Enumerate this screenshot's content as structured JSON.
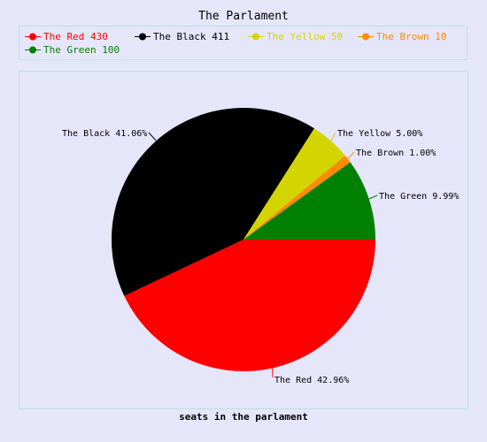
{
  "chart_data": {
    "type": "pie",
    "title": "The Parlament",
    "xlabel": "seats in the parlament",
    "legend_position": "top",
    "slices": [
      {
        "name": "The Red",
        "value": 430,
        "legend": "The Red 430",
        "label": "The Red 42.96%",
        "color": "#ff0000"
      },
      {
        "name": "The Black",
        "value": 411,
        "legend": "The Black 411",
        "label": "The Black 41.06%",
        "color": "#000000"
      },
      {
        "name": "The Yellow",
        "value": 50,
        "legend": "The Yellow 50",
        "label": "The Yellow 5.00%",
        "color": "#d4d400"
      },
      {
        "name": "The Brown",
        "value": 10,
        "legend": "The Brown 10",
        "label": "The Brown 1.00%",
        "color": "#ff8c00"
      },
      {
        "name": "The Green",
        "value": 100,
        "legend": "The Green 100",
        "label": "The Green 9.99%",
        "color": "#008000"
      }
    ]
  }
}
